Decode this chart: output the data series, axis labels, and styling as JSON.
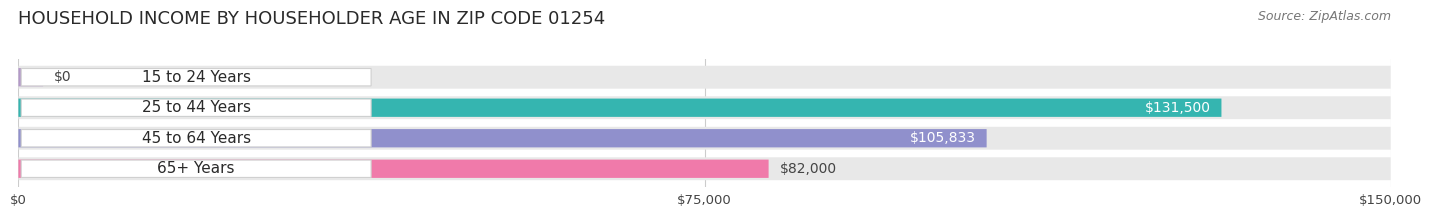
{
  "title": "HOUSEHOLD INCOME BY HOUSEHOLDER AGE IN ZIP CODE 01254",
  "source": "Source: ZipAtlas.com",
  "categories": [
    "15 to 24 Years",
    "25 to 44 Years",
    "45 to 64 Years",
    "65+ Years"
  ],
  "values": [
    0,
    131500,
    105833,
    82000
  ],
  "bar_colors": [
    "#b399c8",
    "#35b5b0",
    "#9090cc",
    "#f07aaa"
  ],
  "value_labels": [
    "$0",
    "$131,500",
    "$105,833",
    "$82,000"
  ],
  "value_inside": [
    false,
    true,
    true,
    false
  ],
  "value_colors_inside": [
    "#555555",
    "#ffffff",
    "#ffffff",
    "#555555"
  ],
  "xlim": [
    0,
    150000
  ],
  "xticks": [
    0,
    75000,
    150000
  ],
  "xtick_labels": [
    "$0",
    "$75,000",
    "$150,000"
  ],
  "background_color": "#ffffff",
  "bar_bg_color": "#e8e8e8",
  "title_fontsize": 13,
  "source_fontsize": 9,
  "label_fontsize": 11,
  "value_fontsize": 10
}
